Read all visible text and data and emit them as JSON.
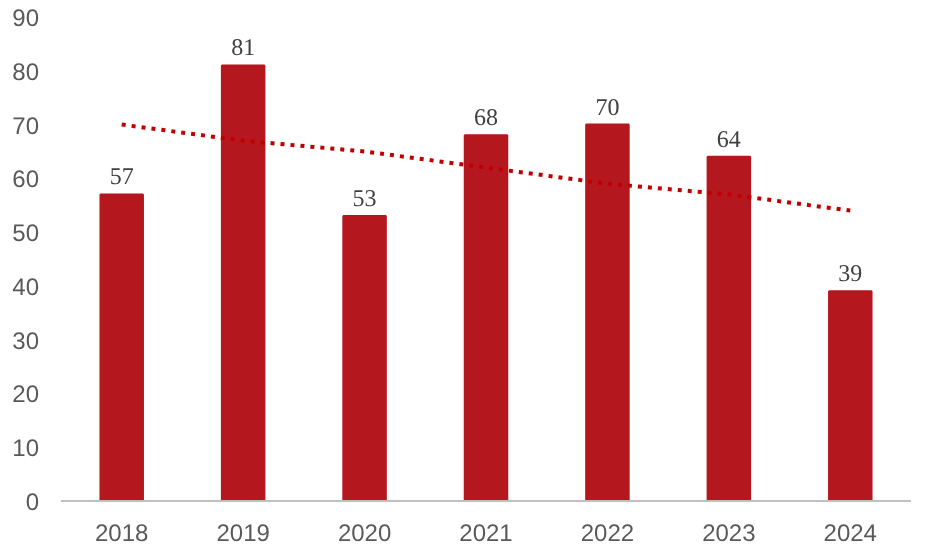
{
  "chart_data": {
    "type": "bar",
    "categories": [
      "2018",
      "2019",
      "2020",
      "2021",
      "2022",
      "2023",
      "2024"
    ],
    "series": [
      {
        "color": "#b5171e",
        "values": [
          57,
          81,
          53,
          68,
          70,
          64,
          39
        ],
        "value_labels": [
          "57",
          "81",
          "53",
          "68",
          "70",
          "64",
          "39"
        ]
      },
      {
        "type": "line",
        "color": "#c00000",
        "line_style": "dotted",
        "values": [
          70,
          67,
          65,
          62,
          59,
          57,
          54
        ]
      }
    ],
    "ylim": [
      0,
      90
    ],
    "yticks": [
      0,
      10,
      20,
      30,
      40,
      50,
      60,
      70,
      80,
      90
    ],
    "grid": false
  }
}
